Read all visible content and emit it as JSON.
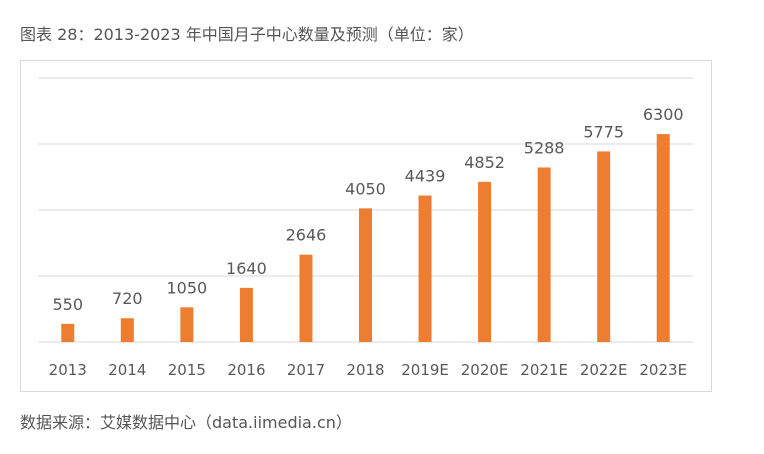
{
  "title": "图表 28：2013-2023 年中国月子中心数量及预测（单位：家）",
  "source": "数据来源：艾媒数据中心（data.iimedia.cn）",
  "chart_data": {
    "type": "bar",
    "categories": [
      "2013",
      "2014",
      "2015",
      "2016",
      "2017",
      "2018",
      "2019E",
      "2020E",
      "2021E",
      "2022E",
      "2023E"
    ],
    "values": [
      550,
      720,
      1050,
      1640,
      2646,
      4050,
      4439,
      4852,
      5288,
      5775,
      6300
    ],
    "ylim": [
      0,
      8000
    ],
    "grid": true,
    "bar_color": "#ed7d31"
  }
}
